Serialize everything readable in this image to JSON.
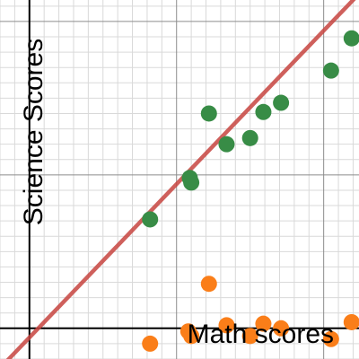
{
  "chart_data": {
    "type": "scatter",
    "xlabel": "Math scores",
    "ylabel": "Science Scores",
    "xlim": [
      -1,
      11.2
    ],
    "ylim": [
      -1,
      10.7
    ],
    "grid": true,
    "series": [
      {
        "color": "#388c46",
        "points": [
          [
            4.1,
            3.55
          ],
          [
            5.45,
            4.9
          ],
          [
            5.5,
            4.75
          ],
          [
            6.1,
            7.0
          ],
          [
            6.7,
            6.0
          ],
          [
            7.5,
            6.2
          ],
          [
            7.95,
            7.05
          ],
          [
            8.55,
            7.35
          ],
          [
            10.25,
            8.4
          ],
          [
            10.95,
            9.45
          ]
        ]
      },
      {
        "color": "#fa7e19",
        "points": [
          [
            4.1,
            -0.5
          ],
          [
            5.4,
            -0.1
          ],
          [
            5.5,
            -0.25
          ],
          [
            6.1,
            1.45
          ],
          [
            6.7,
            0.1
          ],
          [
            7.5,
            -0.25
          ],
          [
            7.95,
            0.15
          ],
          [
            8.55,
            0.0
          ],
          [
            10.25,
            -0.35
          ],
          [
            10.95,
            0.2
          ]
        ]
      }
    ],
    "trendline": {
      "color": "#c74440",
      "slope": 1.0,
      "intercept": -0.3
    }
  }
}
